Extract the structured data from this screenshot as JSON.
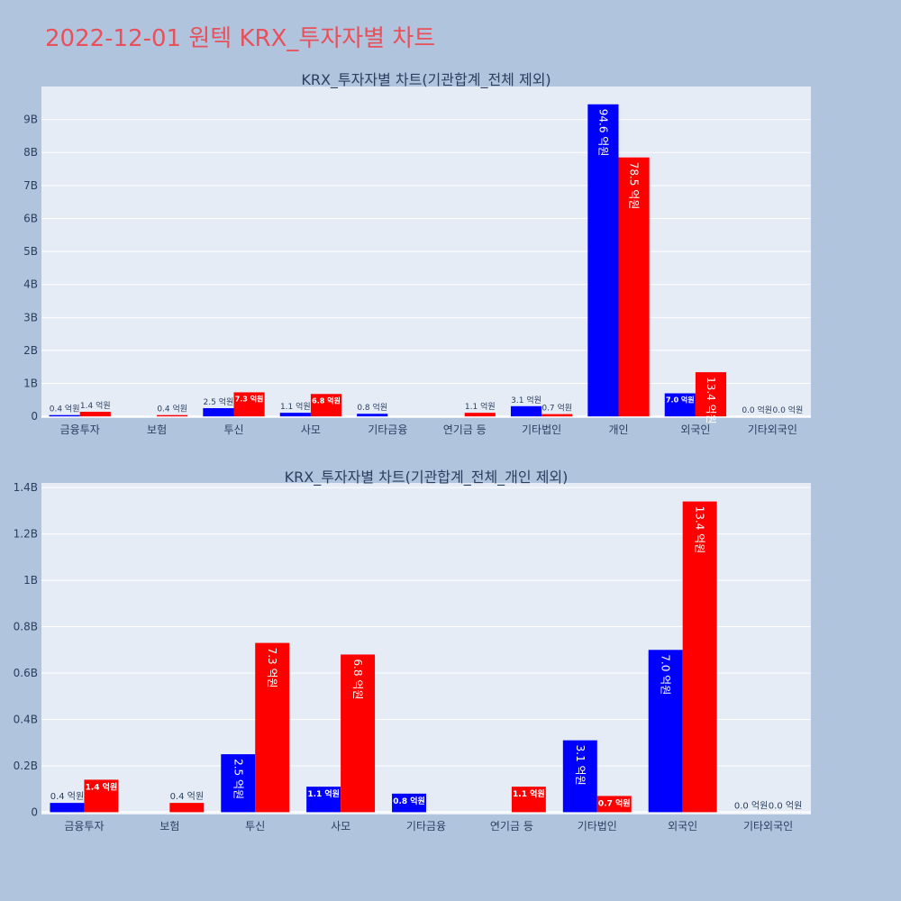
{
  "page": {
    "title": "2022-12-01 원텍 KRX_투자자별 차트"
  },
  "chart_data": [
    {
      "type": "bar",
      "title": "KRX_투자자별 차트(기관합계_전체 제외)",
      "categories": [
        "금융투자",
        "보험",
        "투신",
        "사모",
        "기타금융",
        "연기금 등",
        "기타법인",
        "개인",
        "외국인",
        "기타외국인"
      ],
      "series": [
        {
          "color": "#0000ff",
          "values": [
            40000000,
            0,
            250000000,
            110000000,
            80000000,
            0,
            310000000,
            9460000000,
            700000000,
            0
          ],
          "labels": [
            "0.4 억원",
            "",
            "2.5 억원",
            "1.1 억원",
            "0.8 억원",
            "",
            "3.1 억원",
            "94.6 억원",
            "7.0 억원",
            "0.0 억원"
          ]
        },
        {
          "color": "#ff0000",
          "values": [
            140000000,
            40000000,
            730000000,
            680000000,
            0,
            110000000,
            70000000,
            7850000000,
            1340000000,
            0
          ],
          "labels": [
            "1.4 억원",
            "0.4 억원",
            "7.3 억원",
            "6.8 억원",
            "",
            "1.1 억원",
            "0.7 억원",
            "78.5 억원",
            "13.4 억원",
            "0.0 억원"
          ]
        }
      ],
      "ylim": [
        -50000000,
        10000000000
      ],
      "yticks": [
        0,
        1000000000,
        2000000000,
        3000000000,
        4000000000,
        5000000000,
        6000000000,
        7000000000,
        8000000000,
        9000000000
      ],
      "yticklabels": [
        "0",
        "1B",
        "2B",
        "3B",
        "4B",
        "5B",
        "6B",
        "7B",
        "8B",
        "9B"
      ],
      "grid": true
    },
    {
      "type": "bar",
      "title": "KRX_투자자별 차트(기관합계_전체_개인 제외)",
      "categories": [
        "금융투자",
        "보험",
        "투신",
        "사모",
        "기타금융",
        "연기금 등",
        "기타법인",
        "외국인",
        "기타외국인"
      ],
      "series": [
        {
          "color": "#0000ff",
          "values": [
            40000000,
            0,
            250000000,
            110000000,
            80000000,
            0,
            310000000,
            700000000,
            0
          ],
          "labels": [
            "0.4 억원",
            "",
            "2.5 억원",
            "1.1 억원",
            "0.8 억원",
            "",
            "3.1 억원",
            "7.0 억원",
            "0.0 억원"
          ]
        },
        {
          "color": "#ff0000",
          "values": [
            140000000,
            40000000,
            730000000,
            680000000,
            0,
            110000000,
            70000000,
            1340000000,
            0
          ],
          "labels": [
            "1.4 억원",
            "0.4 억원",
            "7.3 억원",
            "6.8 억원",
            "",
            "1.1 억원",
            "0.7 억원",
            "13.4 억원",
            "0.0 억원"
          ]
        }
      ],
      "ylim": [
        -10000000,
        1420000000
      ],
      "yticks": [
        0,
        200000000,
        400000000,
        600000000,
        800000000,
        1000000000,
        1200000000,
        1400000000
      ],
      "yticklabels": [
        "0",
        "0.2B",
        "0.4B",
        "0.6B",
        "0.8B",
        "1B",
        "1.2B",
        "1.4B"
      ],
      "grid": true
    }
  ]
}
